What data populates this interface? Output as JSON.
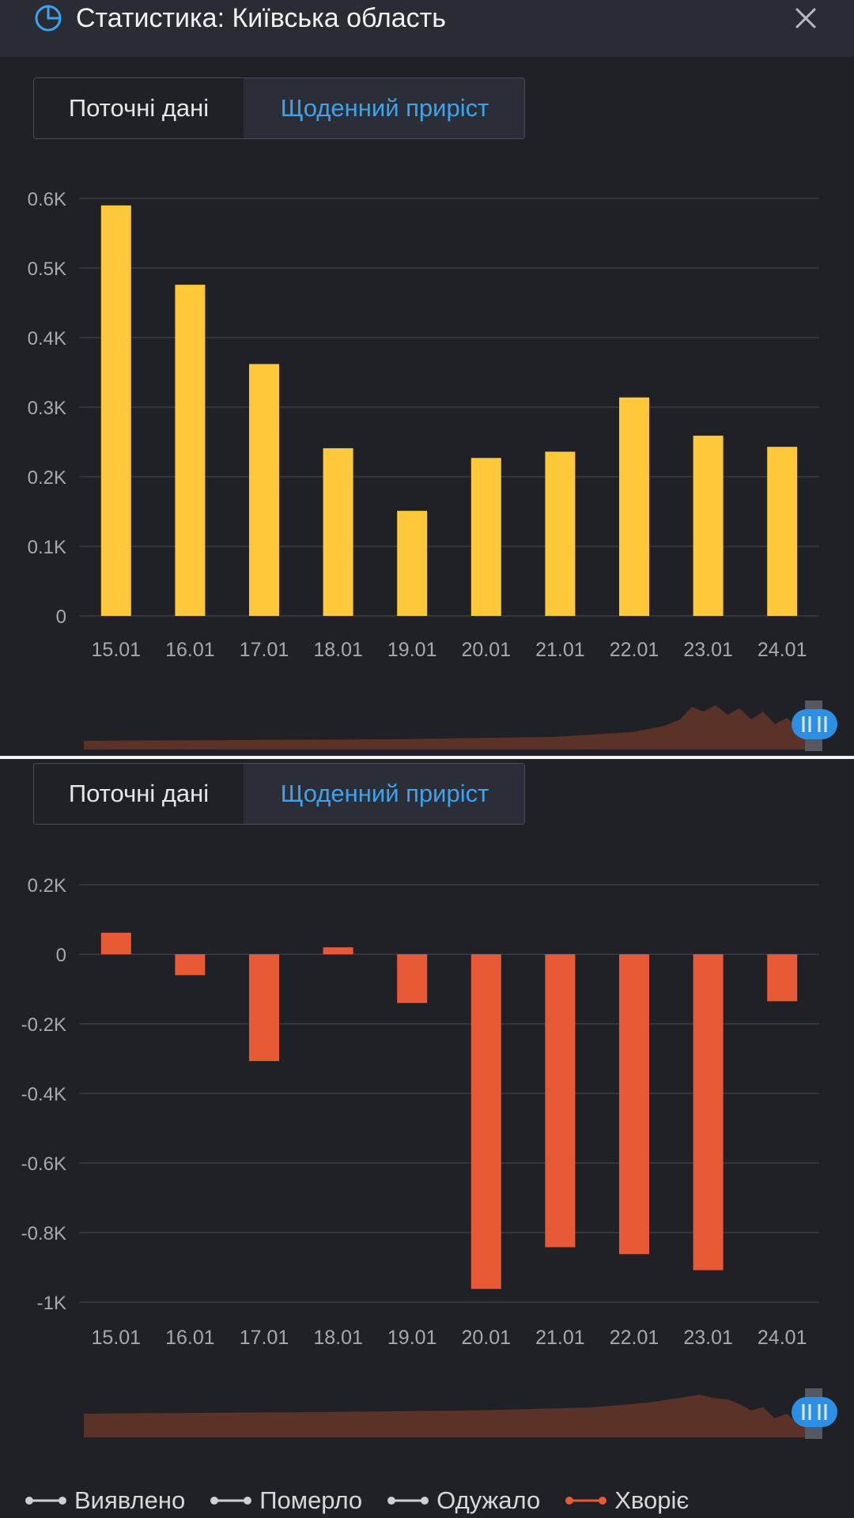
{
  "header": {
    "title": "Статистика: Київська область",
    "title_icon": "pie-chart-icon",
    "close_icon": "close-icon"
  },
  "tabs": [
    {
      "label": "Поточні дані",
      "active": false
    },
    {
      "label": "Щоденний приріст",
      "active": true
    }
  ],
  "colors": {
    "background": "#202127",
    "header": "#2a2c33",
    "accent": "#3ba3f0",
    "detected": "#ffc83a",
    "sick": "#e85a35",
    "grid": "#3a3c44",
    "tick_text": "#a8a9b0",
    "overview_fill": "#5a3228"
  },
  "chart_data": [
    {
      "type": "bar",
      "series_name": "Виявлено",
      "categories": [
        "15.01",
        "16.01",
        "17.01",
        "18.01",
        "19.01",
        "20.01",
        "21.01",
        "22.01",
        "23.01",
        "24.01"
      ],
      "values": [
        590,
        476,
        362,
        241,
        151,
        227,
        236,
        314,
        259,
        243
      ],
      "yticks": [
        0,
        100,
        200,
        300,
        400,
        500,
        600
      ],
      "ytick_labels": [
        "0",
        "0.1K",
        "0.2K",
        "0.3K",
        "0.4K",
        "0.5K",
        "0.6K"
      ],
      "ylim": [
        0,
        600
      ],
      "color": "#ffc83a"
    },
    {
      "type": "bar",
      "series_name": "Хворіє",
      "categories": [
        "15.01",
        "16.01",
        "17.01",
        "18.01",
        "19.01",
        "20.01",
        "21.01",
        "22.01",
        "23.01",
        "24.01"
      ],
      "values": [
        62,
        -60,
        -307,
        20,
        -140,
        -962,
        -842,
        -862,
        -908,
        -135
      ],
      "yticks": [
        -1000,
        -800,
        -600,
        -400,
        -200,
        0,
        200
      ],
      "ytick_labels": [
        "-1K",
        "-0.8K",
        "-0.6K",
        "-0.4K",
        "-0.2K",
        "0",
        "0.2K"
      ],
      "ylim": [
        -1000,
        200
      ],
      "color": "#e85a35"
    }
  ],
  "legend": [
    {
      "label": "Виявлено",
      "active": false,
      "color": "#d0d0d4"
    },
    {
      "label": "Померло",
      "active": false,
      "color": "#d0d0d4"
    },
    {
      "label": "Одужало",
      "active": false,
      "color": "#d0d0d4"
    },
    {
      "label": "Хворіє",
      "active": true,
      "color": "#e85a35"
    }
  ]
}
